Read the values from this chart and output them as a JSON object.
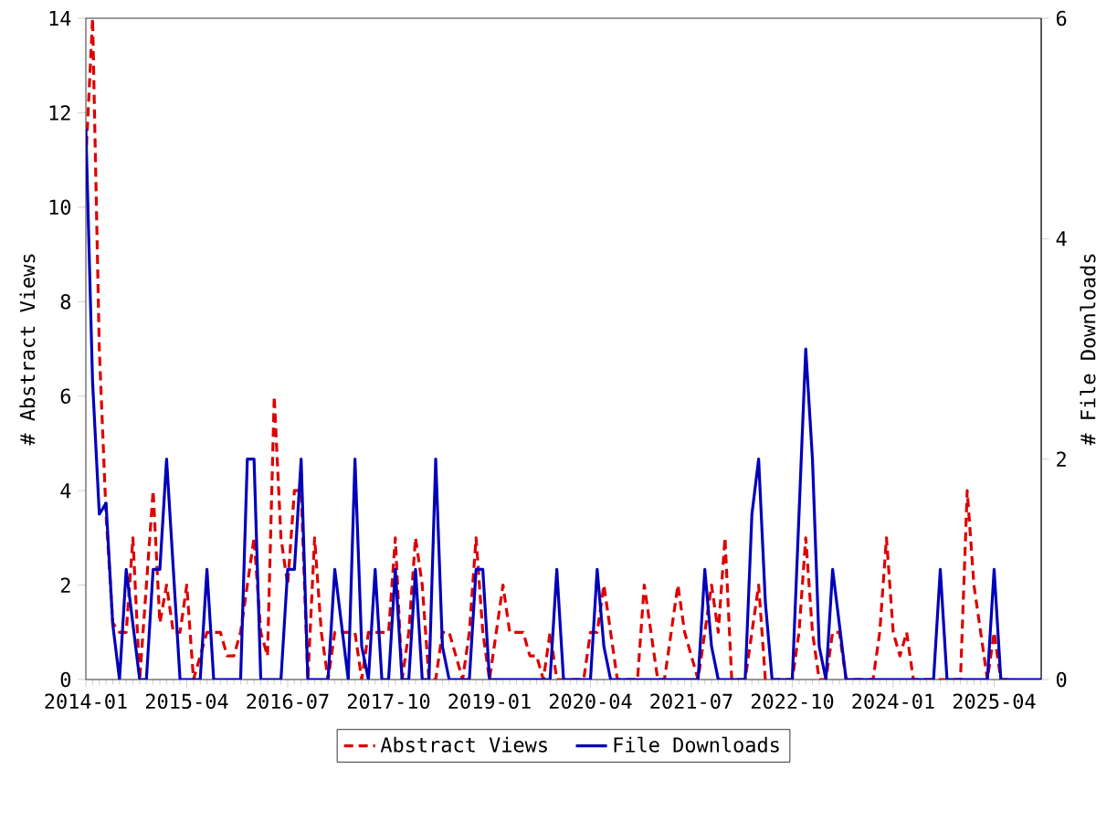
{
  "chart_data": {
    "type": "line",
    "xlabel": null,
    "ylabel": "# Abstract Views",
    "y2label": "# File Downloads",
    "x": [
      "2014-01",
      "2014-02",
      "2014-03",
      "2014-04",
      "2014-05",
      "2014-06",
      "2014-07",
      "2014-08",
      "2014-09",
      "2014-10",
      "2014-11",
      "2014-12",
      "2015-01",
      "2015-02",
      "2015-03",
      "2015-04",
      "2015-05",
      "2015-06",
      "2015-07",
      "2015-08",
      "2015-09",
      "2015-10",
      "2015-11",
      "2015-12",
      "2016-01",
      "2016-02",
      "2016-03",
      "2016-04",
      "2016-05",
      "2016-06",
      "2016-07",
      "2016-08",
      "2016-09",
      "2016-10",
      "2016-11",
      "2016-12",
      "2017-01",
      "2017-02",
      "2017-03",
      "2017-04",
      "2017-05",
      "2017-06",
      "2017-07",
      "2017-08",
      "2017-09",
      "2017-10",
      "2017-11",
      "2017-12",
      "2018-01",
      "2018-02",
      "2018-03",
      "2018-04",
      "2018-05",
      "2018-06",
      "2018-07",
      "2018-08",
      "2018-09",
      "2018-10",
      "2018-11",
      "2018-12",
      "2019-01",
      "2019-02",
      "2019-03",
      "2019-04",
      "2019-05",
      "2019-06",
      "2019-07",
      "2019-08",
      "2019-09",
      "2019-10",
      "2019-11",
      "2019-12",
      "2020-01",
      "2020-02",
      "2020-03",
      "2020-04",
      "2020-05",
      "2020-06",
      "2020-07",
      "2020-08",
      "2020-09",
      "2020-10",
      "2020-11",
      "2020-12",
      "2021-01",
      "2021-02",
      "2021-03",
      "2021-04",
      "2021-05",
      "2021-06",
      "2021-07",
      "2021-08",
      "2021-09",
      "2021-10",
      "2021-11",
      "2021-12",
      "2022-01",
      "2022-02",
      "2022-03",
      "2022-04",
      "2022-05",
      "2022-06",
      "2022-07",
      "2022-08",
      "2022-09",
      "2022-10",
      "2022-11",
      "2022-12",
      "2023-01",
      "2023-02",
      "2023-03",
      "2023-04",
      "2023-05",
      "2023-06",
      "2023-07",
      "2023-08",
      "2023-09",
      "2023-10",
      "2023-11",
      "2023-12",
      "2024-01",
      "2024-02",
      "2024-03",
      "2024-04",
      "2024-05",
      "2024-06",
      "2024-07",
      "2024-08",
      "2024-09",
      "2024-10",
      "2024-11",
      "2024-12",
      "2025-01",
      "2025-02",
      "2025-03",
      "2025-04",
      "2025-05",
      "2025-06",
      "2025-07",
      "2025-08",
      "2025-09",
      "2025-10",
      "2025-11"
    ],
    "series": [
      {
        "name": "Abstract Views",
        "color": "#dd0000",
        "line_style": "dashed",
        "values": [
          11,
          14,
          7,
          3.5,
          1.2,
          1,
          1,
          3,
          0,
          2,
          4,
          1.2,
          2,
          1,
          1,
          2,
          0,
          0.5,
          1,
          1,
          1,
          0.5,
          0.5,
          1,
          2,
          3,
          1,
          0.5,
          6,
          3,
          2,
          4,
          4,
          0,
          3,
          1,
          0,
          1,
          1,
          1,
          1,
          0,
          1,
          1,
          1,
          1,
          3,
          0,
          1,
          3,
          2,
          0,
          0,
          1,
          1,
          0.5,
          0,
          1,
          3,
          1,
          0,
          1,
          2,
          1,
          1,
          1,
          0.5,
          0.5,
          0,
          1,
          0,
          0,
          0,
          0,
          0,
          1,
          1,
          2,
          1,
          0,
          0,
          0,
          0,
          2,
          1,
          0,
          0,
          1,
          2,
          1,
          0.5,
          0,
          1,
          2,
          1,
          3,
          0,
          0,
          0,
          1,
          2,
          0,
          0,
          0,
          0,
          0,
          1,
          3,
          1,
          0,
          0,
          1,
          1,
          0,
          0,
          0,
          0,
          0,
          1,
          3,
          1,
          0.5,
          1,
          0,
          0,
          0,
          0,
          0,
          0,
          0,
          0,
          4,
          2,
          1,
          0,
          1,
          0,
          0,
          0,
          null,
          null,
          null,
          null
        ]
      },
      {
        "name": "File Downloads",
        "color": "#0000bb",
        "line_style": "solid",
        "axis": "y2",
        "values": [
          5,
          2.7,
          1.5,
          1.6,
          0.5,
          0,
          1,
          0.5,
          0,
          0,
          1,
          1,
          2,
          1,
          0,
          0,
          0,
          0,
          1,
          0,
          0,
          0,
          0,
          0,
          2,
          2,
          0,
          0,
          0,
          0,
          1,
          1,
          2,
          0,
          0,
          0,
          0,
          1,
          0.5,
          0,
          2,
          0.3,
          0,
          1,
          0,
          0,
          1,
          0,
          0,
          1,
          0,
          0,
          2,
          0.3,
          0,
          0,
          0,
          0,
          1,
          1,
          0,
          0,
          0,
          0,
          0,
          0,
          0,
          0,
          0,
          0,
          1,
          0,
          0,
          0,
          0,
          0,
          1,
          0.3,
          0,
          0,
          0,
          0,
          0,
          0,
          0,
          0,
          0,
          0,
          0,
          0,
          0,
          0,
          1,
          0.3,
          0,
          0,
          0,
          0,
          0,
          1.5,
          2,
          0.7,
          0,
          0,
          0,
          0,
          1.5,
          3,
          2,
          0.3,
          0,
          1,
          0.5,
          0,
          0,
          0,
          0,
          0,
          0,
          0,
          0,
          0,
          0,
          0,
          0,
          0,
          0,
          1,
          0,
          0,
          0,
          0,
          0,
          0,
          0,
          1,
          0,
          0,
          0,
          0,
          0,
          0,
          0
        ]
      }
    ],
    "xlim": [
      "2014-01",
      "2025-11"
    ],
    "xticks": [
      "2014-01",
      "2015-04",
      "2016-07",
      "2017-10",
      "2019-01",
      "2020-04",
      "2021-07",
      "2022-10",
      "2024-01",
      "2025-04"
    ],
    "ylim": [
      0,
      14
    ],
    "yticks": [
      0,
      2,
      4,
      6,
      8,
      10,
      12,
      14
    ],
    "y2lim": [
      0,
      6
    ],
    "y2ticks": [
      0,
      2,
      4,
      6
    ],
    "grid": false,
    "legend": "bottom"
  }
}
